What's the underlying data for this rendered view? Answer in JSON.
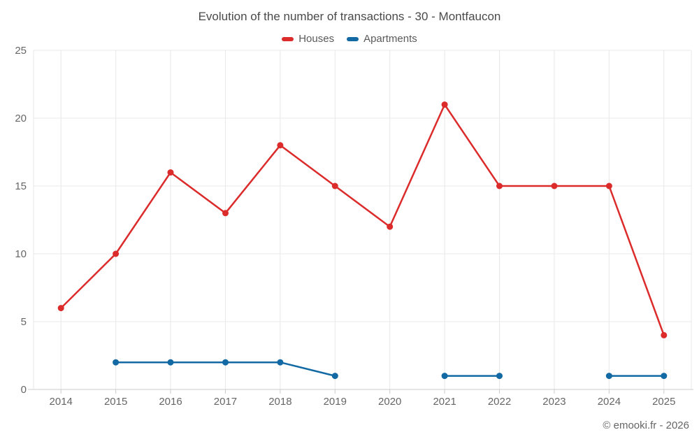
{
  "page": {
    "credit": "© emooki.fr - 2026"
  },
  "chart_data": {
    "type": "line",
    "title": "Evolution of the number of transactions - 30 - Montfaucon",
    "categories": [
      "2014",
      "2015",
      "2016",
      "2017",
      "2018",
      "2019",
      "2020",
      "2021",
      "2022",
      "2023",
      "2024",
      "2025"
    ],
    "series": [
      {
        "name": "Houses",
        "color": "#dc2b2b",
        "values": [
          6,
          10,
          16,
          13,
          18,
          15,
          12,
          21,
          15,
          15,
          15,
          4
        ]
      },
      {
        "name": "Apartments",
        "color": "#1269a3",
        "values": [
          null,
          2,
          2,
          2,
          2,
          1,
          null,
          1,
          1,
          null,
          1,
          1
        ]
      }
    ],
    "ylim": [
      0,
      25
    ],
    "yticks": [
      0,
      5,
      10,
      15,
      20,
      25
    ],
    "grid": true,
    "legend_position": "top",
    "styles": {
      "grid_color": "#e8e8e8",
      "axis_line_color": "#cccccc",
      "tick_label_color": "#666666",
      "title_color": "#4a4a4a"
    }
  }
}
